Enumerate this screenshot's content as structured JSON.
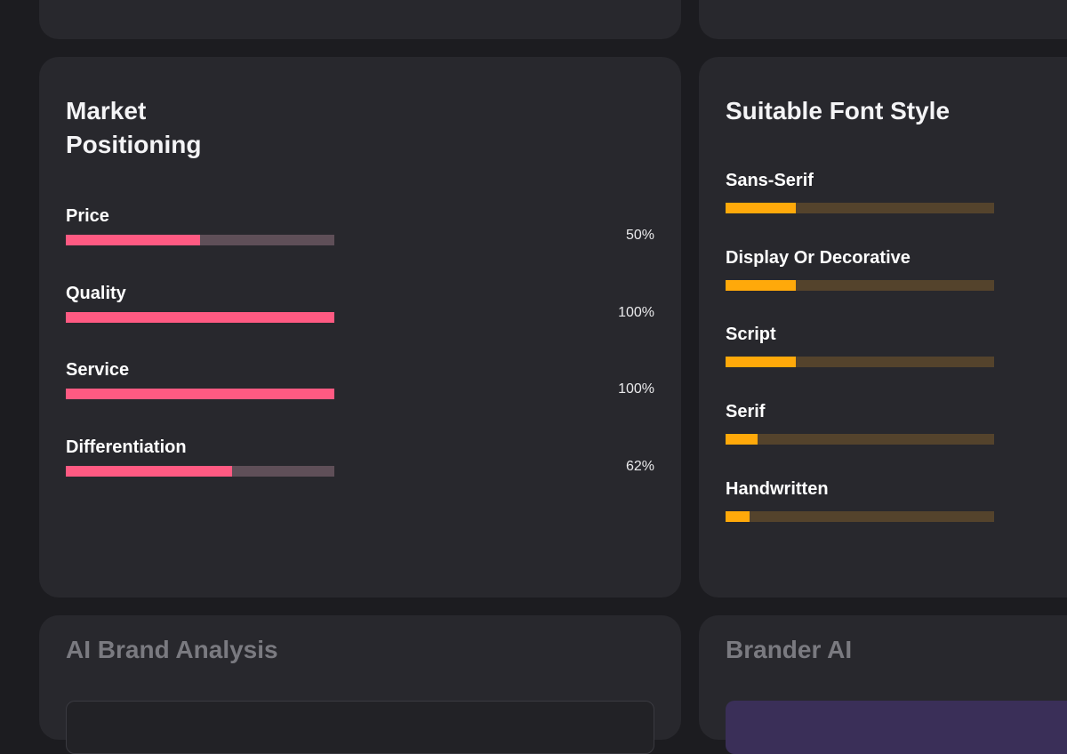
{
  "market_positioning": {
    "title": "Market\nPositioning",
    "metrics": [
      {
        "label": "Price",
        "value": "50%",
        "fraction": 0.5
      },
      {
        "label": "Quality",
        "value": "100%",
        "fraction": 1.0
      },
      {
        "label": "Service",
        "value": "100%",
        "fraction": 1.0
      },
      {
        "label": "Differentiation",
        "value": "62%",
        "fraction": 0.62
      }
    ]
  },
  "font_style": {
    "title": "Suitable Font Style",
    "styles": [
      {
        "label": "Sans-Serif",
        "fraction": 0.26
      },
      {
        "label": "Display Or Decorative",
        "fraction": 0.26
      },
      {
        "label": "Script",
        "fraction": 0.26
      },
      {
        "label": "Serif",
        "fraction": 0.12
      },
      {
        "label": "Handwritten",
        "fraction": 0.09
      }
    ]
  },
  "ai_brand_analysis": {
    "title": "AI Brand Analysis"
  },
  "brander_ai": {
    "title": "Brander AI"
  },
  "colors": {
    "background": "#1c1c20",
    "card": "#28282d",
    "market_bar": "#ff5a82",
    "market_track": "#5f4f58",
    "font_bar": "#ffa90a",
    "font_track": "#54432c"
  }
}
